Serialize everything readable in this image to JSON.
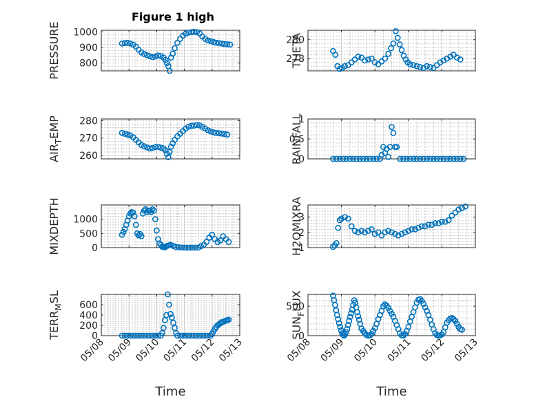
{
  "figure_title": "Figure 1 high",
  "colors": {
    "marker": "#0072BD",
    "axis": "#262626"
  },
  "chart_data": [
    {
      "type": "scatter",
      "marker": "circle-open",
      "ylabel": "PRESSURE",
      "ylabel_sub": "",
      "xlim": [
        "05/08",
        "05/13"
      ],
      "ylim": [
        750,
        1010
      ],
      "yticks": [
        800,
        900,
        1000
      ],
      "xtick_labels": [],
      "xlabel": "",
      "x": [
        0.75,
        0.85,
        0.95,
        1.05,
        1.15,
        1.25,
        1.35,
        1.45,
        1.55,
        1.65,
        1.75,
        1.85,
        1.95,
        2.05,
        2.15,
        2.25,
        2.32,
        2.37,
        2.42,
        2.47,
        2.52,
        2.58,
        2.65,
        2.75,
        2.85,
        2.95,
        3.05,
        3.15,
        3.25,
        3.35,
        3.45,
        3.55,
        3.65,
        3.75,
        3.85,
        3.95,
        4.05,
        4.15,
        4.25,
        4.35,
        4.45,
        4.55,
        4.65
      ],
      "y": [
        925,
        928,
        930,
        925,
        918,
        905,
        885,
        868,
        858,
        850,
        843,
        838,
        842,
        848,
        845,
        835,
        820,
        800,
        780,
        750,
        835,
        860,
        895,
        930,
        955,
        975,
        988,
        995,
        998,
        1000,
        998,
        990,
        970,
        955,
        945,
        940,
        935,
        930,
        928,
        925,
        922,
        920,
        918
      ]
    },
    {
      "type": "scatter",
      "marker": "circle-open",
      "ylabel": "THETA",
      "ylabel_sub": "",
      "xlim": [
        "05/08",
        "05/13"
      ],
      "ylim": [
        276.7,
        281.0
      ],
      "yticks": [
        278,
        280
      ],
      "xtick_labels": [],
      "xlabel": "",
      "x": [
        0.75,
        0.82,
        0.88,
        0.95,
        1.02,
        1.1,
        1.2,
        1.3,
        1.4,
        1.5,
        1.6,
        1.7,
        1.8,
        1.9,
        2.0,
        2.1,
        2.2,
        2.3,
        2.4,
        2.48,
        2.55,
        2.62,
        2.68,
        2.74,
        2.8,
        2.86,
        2.92,
        2.98,
        3.05,
        3.15,
        3.25,
        3.35,
        3.45,
        3.55,
        3.65,
        3.75,
        3.85,
        3.95,
        4.05,
        4.15,
        4.25,
        4.35,
        4.45,
        4.55
      ],
      "y": [
        278.8,
        278.4,
        277.2,
        276.9,
        277.0,
        277.2,
        277.3,
        277.6,
        277.9,
        278.2,
        278.1,
        277.8,
        277.9,
        278.0,
        277.6,
        277.4,
        277.7,
        278.0,
        278.5,
        279.1,
        279.6,
        280.9,
        280.2,
        279.5,
        278.9,
        278.3,
        277.9,
        277.6,
        277.4,
        277.3,
        277.2,
        277.1,
        277.0,
        277.2,
        277.1,
        277.0,
        277.3,
        277.6,
        277.8,
        278.0,
        278.2,
        278.4,
        278.1,
        277.9
      ]
    },
    {
      "type": "scatter",
      "marker": "circle-open",
      "ylabel": "AIR",
      "ylabel_sub": "T",
      "ylabel_suffix": "EMP",
      "xlim": [
        "05/08",
        "05/13"
      ],
      "ylim": [
        258,
        281
      ],
      "yticks": [
        260,
        270,
        280
      ],
      "xtick_labels": [],
      "xlabel": "",
      "x": [
        0.75,
        0.85,
        0.95,
        1.05,
        1.15,
        1.25,
        1.35,
        1.45,
        1.55,
        1.65,
        1.75,
        1.85,
        1.95,
        2.05,
        2.15,
        2.25,
        2.32,
        2.37,
        2.42,
        2.47,
        2.52,
        2.58,
        2.65,
        2.75,
        2.85,
        2.95,
        3.05,
        3.15,
        3.25,
        3.35,
        3.45,
        3.55,
        3.65,
        3.75,
        3.85,
        3.95,
        4.05,
        4.15,
        4.25,
        4.35,
        4.45,
        4.55
      ],
      "y": [
        273,
        272.5,
        272,
        271.5,
        270.5,
        269,
        267.5,
        266,
        265.3,
        264.6,
        264,
        264.3,
        264.8,
        265,
        264.5,
        264,
        263,
        261,
        259,
        262,
        265,
        267,
        269,
        271,
        272.5,
        274,
        275.5,
        276.5,
        277,
        277.2,
        277.5,
        277.3,
        276.5,
        275.5,
        274.5,
        273.8,
        273.3,
        273,
        272.8,
        272.6,
        272.3,
        272
      ]
    },
    {
      "type": "scatter",
      "marker": "circle-open",
      "ylabel": "RAINFALL",
      "ylabel_sub": "",
      "xlim": [
        "05/08",
        "05/13"
      ],
      "ylim": [
        0,
        1
      ],
      "yticks": [
        0,
        0.5,
        1
      ],
      "xtick_labels": [],
      "xlabel": "",
      "x": [
        0.75,
        0.85,
        0.95,
        1.05,
        1.15,
        1.25,
        1.35,
        1.45,
        1.55,
        1.65,
        1.75,
        1.85,
        1.95,
        2.05,
        2.15,
        2.2,
        2.25,
        2.3,
        2.35,
        2.4,
        2.45,
        2.5,
        2.55,
        2.6,
        2.65,
        2.75,
        2.85,
        2.95,
        3.05,
        3.15,
        3.25,
        3.35,
        3.45,
        3.55,
        3.65,
        3.75,
        3.85,
        3.95,
        4.05,
        4.15,
        4.25,
        4.35,
        4.45,
        4.55,
        4.65
      ],
      "y": [
        0,
        0,
        0,
        0,
        0,
        0,
        0,
        0,
        0,
        0,
        0,
        0,
        0,
        0,
        0,
        0.1,
        0.3,
        0.15,
        0.25,
        0.05,
        0.3,
        0.8,
        0.65,
        0.3,
        0.3,
        0,
        0,
        0,
        0,
        0,
        0,
        0,
        0,
        0,
        0,
        0,
        0,
        0,
        0,
        0,
        0,
        0,
        0,
        0,
        0
      ]
    },
    {
      "type": "scatter",
      "marker": "circle-open",
      "ylabel": "MIXDEPTH",
      "ylabel_sub": "",
      "xlim": [
        "05/08",
        "05/13"
      ],
      "ylim": [
        0,
        1500
      ],
      "yticks": [
        0,
        500,
        1000
      ],
      "xtick_labels": [],
      "xlabel": "",
      "x": [
        0.75,
        0.8,
        0.85,
        0.9,
        0.95,
        1.0,
        1.05,
        1.1,
        1.15,
        1.2,
        1.25,
        1.3,
        1.35,
        1.4,
        1.45,
        1.5,
        1.55,
        1.6,
        1.65,
        1.7,
        1.75,
        1.8,
        1.85,
        1.9,
        1.95,
        2.0,
        2.05,
        2.1,
        2.15,
        2.2,
        2.25,
        2.3,
        2.35,
        2.4,
        2.45,
        2.5,
        2.6,
        2.7,
        2.8,
        2.9,
        3.0,
        3.1,
        3.2,
        3.3,
        3.4,
        3.5,
        3.6,
        3.7,
        3.8,
        3.9,
        4.0,
        4.1,
        4.2,
        4.3,
        4.4,
        4.5,
        4.6
      ],
      "y": [
        450,
        550,
        650,
        800,
        950,
        1100,
        1200,
        1250,
        1230,
        1100,
        800,
        500,
        430,
        480,
        400,
        1200,
        1300,
        1350,
        1250,
        1300,
        1300,
        1250,
        1350,
        1300,
        1000,
        600,
        300,
        150,
        100,
        30,
        20,
        10,
        50,
        70,
        80,
        100,
        60,
        20,
        10,
        5,
        0,
        0,
        0,
        0,
        0,
        0,
        50,
        100,
        200,
        350,
        450,
        300,
        200,
        250,
        400,
        300,
        200
      ]
    },
    {
      "type": "scatter",
      "marker": "circle-open",
      "ylabel": "H2OMIXRA",
      "ylabel_sub": "",
      "xlim": [
        "05/08",
        "05/13"
      ],
      "ylim": [
        1,
        3.8
      ],
      "yticks": [
        1,
        2,
        3
      ],
      "xtick_labels": [],
      "xlabel": "",
      "x": [
        0.75,
        0.8,
        0.85,
        0.9,
        0.95,
        1.0,
        1.1,
        1.2,
        1.3,
        1.4,
        1.5,
        1.6,
        1.7,
        1.8,
        1.9,
        2.0,
        2.1,
        2.2,
        2.3,
        2.4,
        2.5,
        2.6,
        2.7,
        2.8,
        2.9,
        3.0,
        3.1,
        3.2,
        3.3,
        3.4,
        3.5,
        3.6,
        3.7,
        3.8,
        3.9,
        4.0,
        4.1,
        4.2,
        4.3,
        4.4,
        4.5,
        4.6,
        4.7
      ],
      "y": [
        1.05,
        1.15,
        1.3,
        2.3,
        2.8,
        2.9,
        3.0,
        2.9,
        2.4,
        2.1,
        2.0,
        2.1,
        2.0,
        2.1,
        2.2,
        1.9,
        2.0,
        1.8,
        2.0,
        2.1,
        2.0,
        1.9,
        1.8,
        1.9,
        2.0,
        2.1,
        2.2,
        2.2,
        2.3,
        2.4,
        2.4,
        2.5,
        2.5,
        2.6,
        2.6,
        2.7,
        2.7,
        2.8,
        3.1,
        3.3,
        3.5,
        3.6,
        3.7
      ]
    },
    {
      "type": "scatter",
      "marker": "circle-open",
      "ylabel": "TERR",
      "ylabel_sub": "M",
      "ylabel_suffix": "SL",
      "xlim": [
        "05/08",
        "05/13"
      ],
      "ylim": [
        0,
        800
      ],
      "yticks": [
        0,
        200,
        400,
        600
      ],
      "xtick_labels": [
        "05/08",
        "05/09",
        "05/10",
        "05/11",
        "05/12",
        "05/13"
      ],
      "xlabel": "Time",
      "x": [
        0.75,
        0.85,
        0.95,
        1.05,
        1.15,
        1.25,
        1.35,
        1.45,
        1.55,
        1.65,
        1.75,
        1.85,
        1.95,
        2.05,
        2.15,
        2.2,
        2.25,
        2.3,
        2.35,
        2.4,
        2.45,
        2.5,
        2.55,
        2.6,
        2.65,
        2.7,
        2.75,
        2.85,
        2.95,
        3.05,
        3.15,
        3.25,
        3.35,
        3.45,
        3.55,
        3.65,
        3.75,
        3.85,
        3.95,
        4.0,
        4.05,
        4.1,
        4.15,
        4.2,
        4.25,
        4.3,
        4.35,
        4.4,
        4.45,
        4.5,
        4.55,
        4.6
      ],
      "y": [
        0,
        0,
        0,
        0,
        0,
        0,
        0,
        0,
        0,
        0,
        0,
        0,
        0,
        0,
        0,
        50,
        150,
        300,
        400,
        800,
        600,
        420,
        350,
        250,
        150,
        50,
        0,
        0,
        0,
        0,
        0,
        0,
        0,
        0,
        0,
        0,
        0,
        0,
        0,
        30,
        80,
        130,
        170,
        200,
        220,
        240,
        260,
        270,
        280,
        290,
        300,
        310
      ]
    },
    {
      "type": "scatter",
      "marker": "circle-open",
      "ylabel": "SUN",
      "ylabel_sub": "F",
      "ylabel_suffix": "LUX",
      "xlim": [
        "05/08",
        "05/13"
      ],
      "ylim": [
        0,
        700
      ],
      "yticks": [
        0,
        500
      ],
      "xtick_labels": [
        "05/08",
        "05/09",
        "05/10",
        "05/11",
        "05/12",
        "05/13"
      ],
      "xlabel": "Time",
      "x": [
        0.75,
        0.78,
        0.81,
        0.84,
        0.87,
        0.9,
        0.93,
        0.96,
        0.99,
        1.02,
        1.05,
        1.08,
        1.11,
        1.14,
        1.17,
        1.2,
        1.23,
        1.26,
        1.29,
        1.32,
        1.35,
        1.38,
        1.41,
        1.44,
        1.47,
        1.5,
        1.53,
        1.56,
        1.6,
        1.65,
        1.7,
        1.75,
        1.8,
        1.85,
        1.9,
        1.95,
        2.0,
        2.05,
        2.1,
        2.15,
        2.2,
        2.25,
        2.3,
        2.35,
        2.4,
        2.45,
        2.5,
        2.55,
        2.6,
        2.65,
        2.7,
        2.75,
        2.8,
        2.85,
        2.9,
        2.95,
        3.0,
        3.05,
        3.1,
        3.15,
        3.2,
        3.25,
        3.3,
        3.35,
        3.4,
        3.45,
        3.5,
        3.55,
        3.6,
        3.65,
        3.7,
        3.75,
        3.8,
        3.85,
        3.9,
        3.95,
        4.0,
        4.05,
        4.1,
        4.15,
        4.2,
        4.25,
        4.3,
        4.35,
        4.4,
        4.45,
        4.5,
        4.55,
        4.6
      ],
      "y": [
        680,
        600,
        520,
        430,
        350,
        280,
        210,
        150,
        90,
        40,
        10,
        0,
        20,
        60,
        110,
        180,
        250,
        320,
        380,
        440,
        520,
        600,
        560,
        480,
        400,
        330,
        270,
        200,
        120,
        80,
        40,
        10,
        0,
        5,
        30,
        80,
        130,
        200,
        280,
        350,
        420,
        500,
        530,
        510,
        470,
        420,
        370,
        320,
        250,
        180,
        110,
        40,
        5,
        0,
        30,
        80,
        150,
        240,
        320,
        400,
        480,
        560,
        610,
        620,
        590,
        540,
        480,
        420,
        350,
        270,
        190,
        110,
        40,
        10,
        0,
        5,
        20,
        60,
        140,
        220,
        260,
        290,
        300,
        280,
        250,
        200,
        150,
        110,
        100
      ]
    }
  ]
}
